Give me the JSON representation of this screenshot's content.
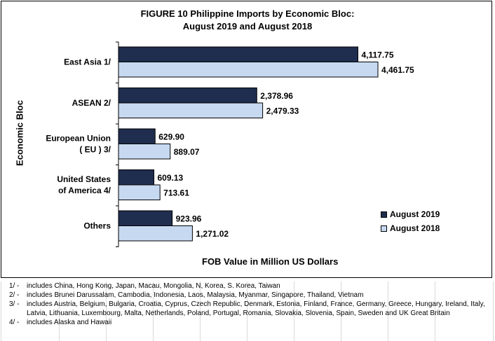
{
  "chart_data": {
    "type": "bar",
    "orientation": "horizontal",
    "title": "FIGURE 10  Philippine Imports by Economic Bloc:",
    "subtitle": "August 2019 and August 2018",
    "xlabel": "FOB Value in Million US Dollars",
    "ylabel": "Economic Bloc",
    "categories": [
      [
        "East Asia 1/"
      ],
      [
        "ASEAN 2/"
      ],
      [
        "European Union",
        "( EU ) 3/"
      ],
      [
        "United States",
        "of America 4/"
      ],
      [
        "Others"
      ]
    ],
    "series": [
      {
        "name": "August 2019",
        "color": "#1f2d4e",
        "values": [
          4117.75,
          2378.96,
          629.9,
          609.13,
          923.96
        ],
        "labels": [
          "4,117.75",
          "2,378.96",
          "629.90",
          "609.13",
          "923.96"
        ]
      },
      {
        "name": "August 2018",
        "color": "#c6d9f1",
        "values": [
          4461.75,
          2479.33,
          889.07,
          713.61,
          1271.02
        ],
        "labels": [
          "4,461.75",
          "2,479.33",
          "889.07",
          "713.61",
          "1,271.02"
        ]
      }
    ],
    "xlim": [
      0,
      5000
    ],
    "grid": false,
    "legend": "bottom-right"
  },
  "notes": [
    {
      "mark": "1/ -",
      "text": "includes China, Hong Kong, Japan, Macau, Mongolia, N, Korea, S. Korea, Taiwan"
    },
    {
      "mark": "2/ -",
      "text": "includes Brunei Darussalam, Cambodia, Indonesia, Laos, Malaysia, Myanmar, Singapore, Thailand, Vietnam"
    },
    {
      "mark": "3/ -",
      "text": "includes Austria, Belgium, Bulgaria, Croatia, Cyprus, Czech Republic, Denmark, Estonia,  Finland, France, Germany, Greece, Hungary, Ireland, Italy, Latvia,  Lithuania, Luxembourg, Malta, Netherlands, Poland, Portugal, Romania, Slovakia, Slovenia, Spain, Sweden and UK Great Britain"
    },
    {
      "mark": "4/ -",
      "text": "includes Alaska and Hawaii"
    }
  ]
}
